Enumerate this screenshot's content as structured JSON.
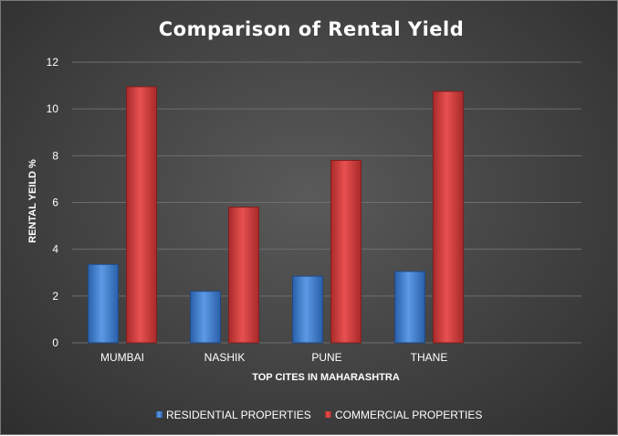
{
  "chart_data": {
    "type": "bar",
    "title": "Comparison of Rental Yield",
    "xlabel": "TOP CITES IN MAHARASHTRA",
    "ylabel": "RENTAL YEILD %",
    "categories": [
      "MUMBAI",
      "NASHIK",
      "PUNE",
      "THANE"
    ],
    "series": [
      {
        "name": "RESIDENTIAL PROPERTIES",
        "values": [
          3.35,
          2.2,
          2.85,
          3.05
        ],
        "color": "#3a78c8"
      },
      {
        "name": "COMMERCIAL PROPERTIES",
        "values": [
          10.95,
          5.8,
          7.8,
          10.75
        ],
        "color": "#cc3a3a"
      }
    ],
    "ylim": [
      0,
      12
    ],
    "yticks": [
      0,
      2,
      4,
      6,
      8,
      10,
      12
    ],
    "grid": true,
    "legend_position": "bottom"
  }
}
